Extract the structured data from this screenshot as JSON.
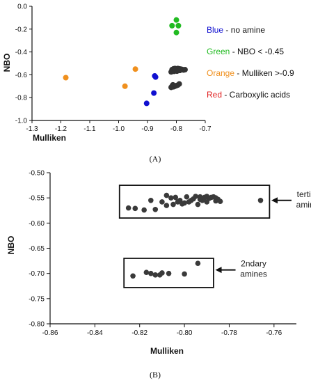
{
  "chart_data": [
    {
      "type": "scatter",
      "panel_label": "(A)",
      "xlabel": "Mulliken",
      "ylabel": "NBO",
      "xlim": [
        -1.3,
        -0.7
      ],
      "ylim": [
        -1.0,
        0.0
      ],
      "xticks": [
        "-1.3",
        "-1.2",
        "-1.1",
        "-1.0",
        "-0.9",
        "-0.8",
        "-0.7"
      ],
      "yticks": [
        "0.0",
        "-0.2",
        "-0.4",
        "-0.6",
        "-0.8",
        "-1.0"
      ],
      "xtick_values": [
        -1.3,
        -1.2,
        -1.1,
        -1.0,
        -0.9,
        -0.8,
        -0.7
      ],
      "ytick_values": [
        0.0,
        -0.2,
        -0.4,
        -0.6,
        -0.8,
        -1.0
      ],
      "legend_position": "right",
      "legend": [
        {
          "key": "Blue",
          "desc": " - no amine",
          "color": "#1010d0"
        },
        {
          "key": "Green",
          "desc": " - NBO < -0.45",
          "color": "#22bb22"
        },
        {
          "key": "Orange",
          "desc": " - Mulliken >-0.9",
          "color": "#f0901e"
        },
        {
          "key": "Red",
          "desc": " - Carboxylic acids",
          "color": "#e02020"
        }
      ],
      "series": [
        {
          "color": "#1010d0",
          "points": [
            [
              -0.875,
              -0.61
            ],
            [
              -0.872,
              -0.62
            ],
            [
              -0.878,
              -0.76
            ],
            [
              -0.903,
              -0.85
            ]
          ]
        },
        {
          "color": "#22bb22",
          "points": [
            [
              -0.8,
              -0.12
            ],
            [
              -0.815,
              -0.17
            ],
            [
              -0.793,
              -0.17
            ],
            [
              -0.8,
              -0.23
            ]
          ]
        },
        {
          "color": "#f0901e",
          "points": [
            [
              -1.183,
              -0.625
            ],
            [
              -0.978,
              -0.7
            ],
            [
              -0.942,
              -0.55
            ]
          ]
        },
        {
          "color": "#333333",
          "points": [
            [
              -0.815,
              -0.555
            ],
            [
              -0.81,
              -0.548
            ],
            [
              -0.805,
              -0.545
            ],
            [
              -0.8,
              -0.55
            ],
            [
              -0.795,
              -0.545
            ],
            [
              -0.79,
              -0.548
            ],
            [
              -0.785,
              -0.55
            ],
            [
              -0.78,
              -0.553
            ],
            [
              -0.775,
              -0.558
            ],
            [
              -0.812,
              -0.565
            ],
            [
              -0.808,
              -0.57
            ],
            [
              -0.802,
              -0.562
            ],
            [
              -0.798,
              -0.568
            ],
            [
              -0.792,
              -0.56
            ],
            [
              -0.818,
              -0.575
            ],
            [
              -0.805,
              -0.555
            ],
            [
              -0.788,
              -0.562
            ],
            [
              -0.77,
              -0.555
            ],
            [
              -0.815,
              -0.7
            ],
            [
              -0.81,
              -0.705
            ],
            [
              -0.805,
              -0.7
            ],
            [
              -0.8,
              -0.695
            ],
            [
              -0.795,
              -0.69
            ],
            [
              -0.812,
              -0.688
            ],
            [
              -0.79,
              -0.68
            ],
            [
              -0.818,
              -0.71
            ]
          ]
        }
      ]
    },
    {
      "type": "scatter",
      "panel_label": "(B)",
      "xlabel": "Mulliken",
      "ylabel": "NBO",
      "xlim": [
        -0.86,
        -0.75
      ],
      "ylim": [
        -0.8,
        -0.5
      ],
      "xticks": [
        "-0.86",
        "-0.84",
        "-0.82",
        "-0.80",
        "-0.78",
        "-0.76"
      ],
      "yticks": [
        "-0.50",
        "-0.55",
        "-0.60",
        "-0.65",
        "-0.70",
        "-0.75",
        "-0.80"
      ],
      "xtick_values": [
        -0.86,
        -0.84,
        -0.82,
        -0.8,
        -0.78,
        -0.76
      ],
      "ytick_values": [
        -0.5,
        -0.55,
        -0.6,
        -0.65,
        -0.7,
        -0.75,
        -0.8
      ],
      "annotations": [
        {
          "text_lines": [
            "tertiary",
            "amines"
          ],
          "box": {
            "x0": -0.829,
            "x1": -0.762,
            "y0": -0.525,
            "y1": -0.59
          },
          "arrow_target": [
            -0.7615,
            -0.555
          ]
        },
        {
          "text_lines": [
            "2ndary",
            "amines"
          ],
          "box": {
            "x0": -0.827,
            "x1": -0.787,
            "y0": -0.67,
            "y1": -0.728
          },
          "arrow_target": [
            -0.7865,
            -0.693
          ]
        }
      ],
      "series": [
        {
          "color": "#3a3a3a",
          "points": [
            [
              -0.825,
              -0.57
            ],
            [
              -0.822,
              -0.571
            ],
            [
              -0.818,
              -0.574
            ],
            [
              -0.813,
              -0.573
            ],
            [
              -0.808,
              -0.565
            ],
            [
              -0.805,
              -0.563
            ],
            [
              -0.803,
              -0.558
            ],
            [
              -0.8,
              -0.56
            ],
            [
              -0.797,
              -0.555
            ],
            [
              -0.793,
              -0.553
            ],
            [
              -0.79,
              -0.558
            ],
            [
              -0.786,
              -0.556
            ],
            [
              -0.815,
              -0.555
            ],
            [
              -0.808,
              -0.545
            ],
            [
              -0.806,
              -0.55
            ],
            [
              -0.804,
              -0.549
            ],
            [
              -0.802,
              -0.555
            ],
            [
              -0.801,
              -0.562
            ],
            [
              -0.799,
              -0.548
            ],
            [
              -0.798,
              -0.558
            ],
            [
              -0.796,
              -0.552
            ],
            [
              -0.795,
              -0.547
            ],
            [
              -0.794,
              -0.563
            ],
            [
              -0.793,
              -0.548
            ],
            [
              -0.792,
              -0.555
            ],
            [
              -0.791,
              -0.549
            ],
            [
              -0.79,
              -0.547
            ],
            [
              -0.789,
              -0.551
            ],
            [
              -0.788,
              -0.549
            ],
            [
              -0.787,
              -0.548
            ],
            [
              -0.786,
              -0.55
            ],
            [
              -0.785,
              -0.553
            ],
            [
              -0.784,
              -0.557
            ],
            [
              -0.81,
              -0.558
            ],
            [
              -0.766,
              -0.555
            ],
            [
              -0.823,
              -0.705
            ],
            [
              -0.817,
              -0.698
            ],
            [
              -0.815,
              -0.7
            ],
            [
              -0.813,
              -0.703
            ],
            [
              -0.811,
              -0.703
            ],
            [
              -0.81,
              -0.699
            ],
            [
              -0.807,
              -0.7
            ],
            [
              -0.8,
              -0.701
            ],
            [
              -0.794,
              -0.68
            ]
          ]
        }
      ]
    }
  ]
}
